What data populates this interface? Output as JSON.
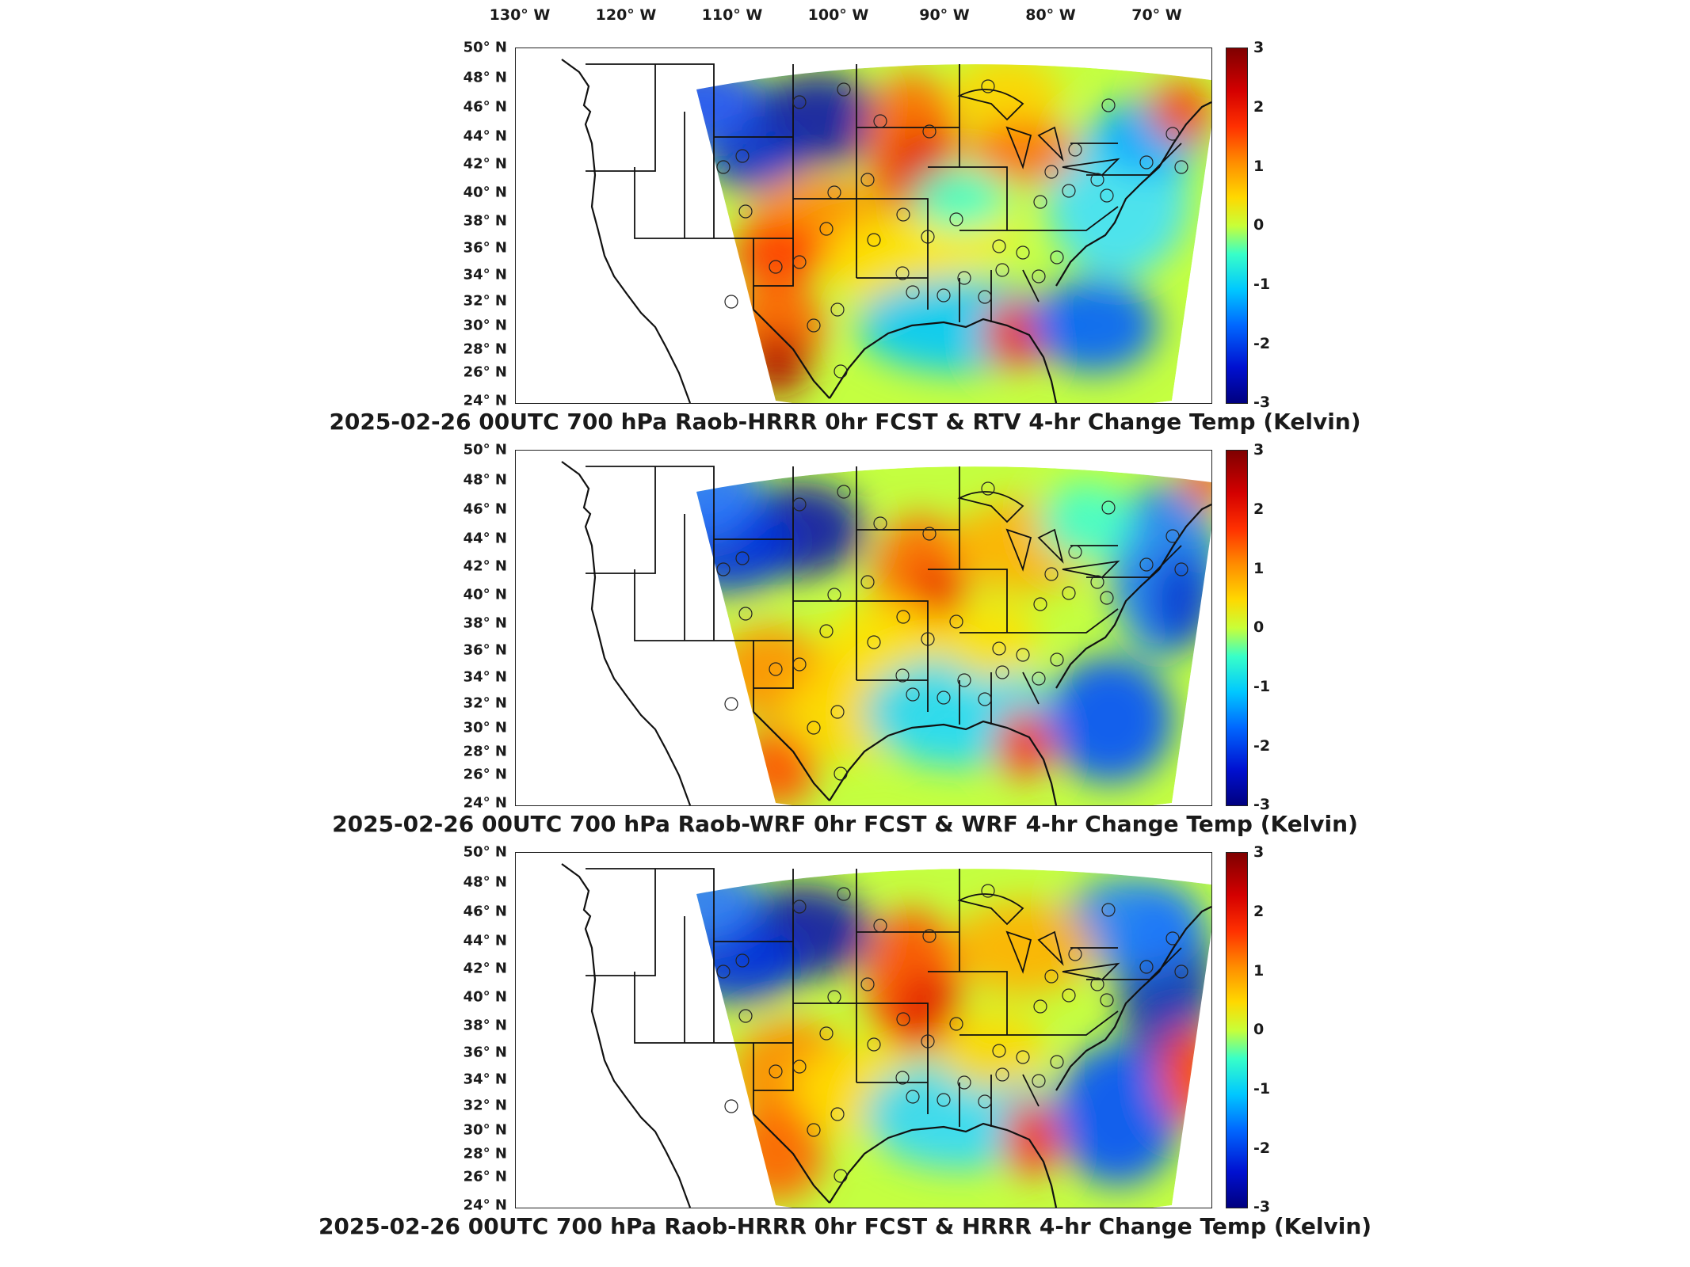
{
  "longitude_labels": [
    "130° W",
    "120° W",
    "110° W",
    "100° W",
    "90° W",
    "80° W",
    "70° W"
  ],
  "latitude_labels": [
    "50° N",
    "48° N",
    "46° N",
    "44° N",
    "42° N",
    "40° N",
    "38° N",
    "36° N",
    "34° N",
    "32° N",
    "30° N",
    "28° N",
    "26° N",
    "24° N"
  ],
  "colorbar_ticks": [
    "3",
    "2",
    "1",
    "0",
    "-1",
    "-2",
    "-3"
  ],
  "colorbar_colors": [
    "#7f0000",
    "#ff3000",
    "#ffd800",
    "#38ffc8",
    "#00c8ff",
    "#0010d0",
    "#00007f"
  ],
  "panels": [
    {
      "title": "2025-02-26 00UTC 700 hPa Raob-HRRR 0hr FCST & RTV 4-hr Change Temp (Kelvin)"
    },
    {
      "title": "2025-02-26 00UTC 700 hPa Raob-WRF 0hr FCST & WRF 4-hr Change Temp (Kelvin)"
    },
    {
      "title": "2025-02-26 00UTC 700 hPa Raob-HRRR 0hr FCST & HRRR 4-hr Change Temp (Kelvin)"
    }
  ]
}
